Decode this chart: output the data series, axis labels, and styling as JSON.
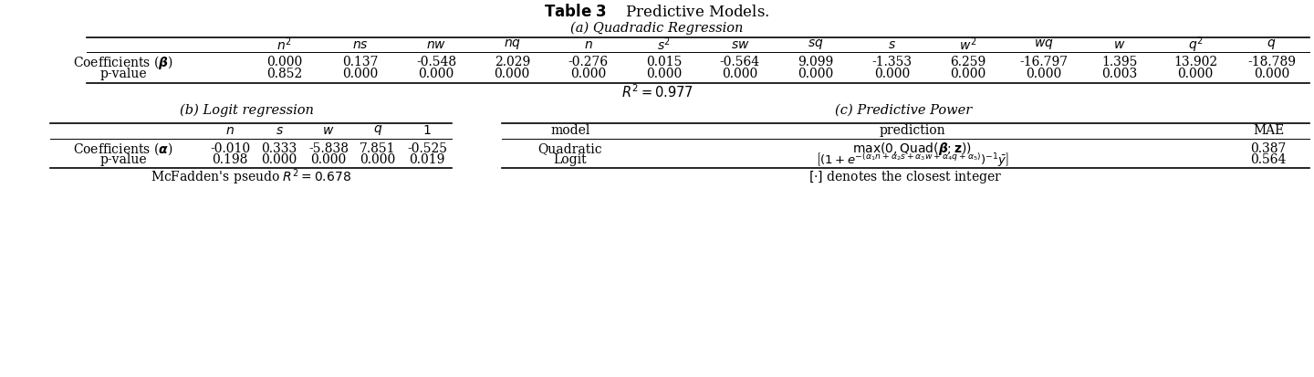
{
  "title_bold": "Table 3",
  "title_rest": "    Predictive Models.",
  "subtitle_a": "(a) Quadradic Regression",
  "subtitle_b": "(b) Logit regression",
  "subtitle_c": "(c) Predictive Power",
  "quad_cols": [
    "$n^2$",
    "$ns$",
    "$nw$",
    "$nq$",
    "$n$",
    "$s^2$",
    "$sw$",
    "$sq$",
    "$s$",
    "$w^2$",
    "$wq$",
    "$w$",
    "$q^2$",
    "$q$"
  ],
  "quad_coeff": [
    "0.000",
    "0.137",
    "-0.548",
    "2.029",
    "-0.276",
    "0.015",
    "-0.564",
    "9.099",
    "-1.353",
    "6.259",
    "-16.797",
    "1.395",
    "13.902",
    "-18.789"
  ],
  "quad_pval": [
    "0.852",
    "0.000",
    "0.000",
    "0.000",
    "0.000",
    "0.000",
    "0.000",
    "0.000",
    "0.000",
    "0.000",
    "0.000",
    "0.003",
    "0.000",
    "0.000"
  ],
  "quad_r2": "$R^2 = 0.977$",
  "logit_cols": [
    "$n$",
    "$s$",
    "$w$",
    "$q$",
    "$1$"
  ],
  "logit_coeff": [
    "-0.010",
    "0.333",
    "-5.838",
    "7.851",
    "-0.525"
  ],
  "logit_pval": [
    "0.198",
    "0.000",
    "0.000",
    "0.000",
    "0.019"
  ],
  "logit_r2": "McFadden's pseudo $R^2 = 0.678$",
  "pred_models": [
    "Quadratic",
    "Logit"
  ],
  "pred_mae": [
    "0.387",
    "0.564"
  ],
  "pred_note": "$[\\cdot]$ denotes the closest integer",
  "bg_color": "#ffffff",
  "text_color": "#000000"
}
